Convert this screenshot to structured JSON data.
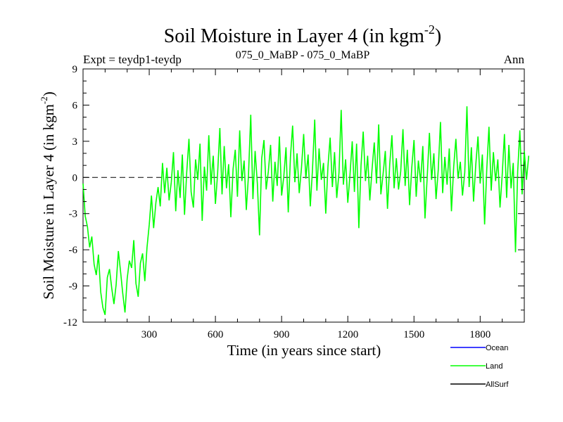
{
  "chart_data": {
    "type": "line",
    "title": "Soil Moisture in Layer 4 (in kgm",
    "title_sup": "-2",
    "title_close": ")",
    "subtitle_left": "Expt = teydp1-teydp",
    "subtitle_center": "075_0_MaBP - 075_0_MaBP",
    "subtitle_right": "Ann",
    "xlabel": "Time (in years since start)",
    "ylabel": "Soil Moisture in Layer 4 (in kgm",
    "ylabel_sup": "-2",
    "ylabel_close": ")",
    "xlim": [
      0,
      2000
    ],
    "ylim": [
      -12,
      9
    ],
    "xticks": [
      300,
      600,
      900,
      1200,
      1500,
      1800
    ],
    "xtick_labels": [
      "300",
      "600",
      "900",
      "1200",
      "1500",
      "1800"
    ],
    "yticks": [
      -12,
      -9,
      -6,
      -3,
      0,
      3,
      6,
      9
    ],
    "ytick_labels": [
      "-12",
      "-9",
      "-6",
      "-3",
      "0",
      "3",
      "6",
      "9"
    ],
    "zero_line": true,
    "series": [
      {
        "name": "Land",
        "color": "#00ff00",
        "x_start": 0,
        "x_step": 10,
        "values": [
          -0.5,
          -3.2,
          -4.1,
          -5.8,
          -4.9,
          -7.2,
          -8.1,
          -6.4,
          -9.5,
          -10.8,
          -11.4,
          -8.3,
          -7.6,
          -9.2,
          -10.5,
          -8.9,
          -6.1,
          -7.8,
          -9.6,
          -11.2,
          -8.4,
          -6.9,
          -7.5,
          -5.2,
          -8.8,
          -9.9,
          -7.1,
          -6.3,
          -8.6,
          -5.8,
          -3.9,
          -1.5,
          -4.2,
          -2.1,
          -0.8,
          -2.4,
          1.2,
          -1.3,
          0.8,
          -1.9,
          -0.4,
          2.1,
          -2.8,
          0.6,
          -1.7,
          1.9,
          -3.1,
          0.4,
          3.2,
          -1.2,
          -2.5,
          1.5,
          -0.2,
          2.8,
          -3.6,
          0.9,
          -1.1,
          3.5,
          -0.6,
          1.8,
          -2.2,
          0.3,
          4.1,
          -1.4,
          2.6,
          -0.9,
          1.1,
          -3.3,
          0.7,
          2.3,
          -1.6,
          3.9,
          -0.3,
          1.4,
          -2.7,
          0.2,
          5.2,
          -1.8,
          2.2,
          -0.5,
          -4.8,
          1.6,
          3.1,
          -1.0,
          0.5,
          2.7,
          -2.0,
          1.3,
          -0.7,
          3.4,
          -1.5,
          0.1,
          2.5,
          -2.9,
          1.7,
          4.3,
          -0.4,
          2.0,
          -1.3,
          0.8,
          3.6,
          -0.1,
          1.9,
          -2.4,
          0.6,
          4.8,
          -1.1,
          2.4,
          -0.2,
          1.2,
          -3.0,
          0.9,
          3.3,
          -0.8,
          2.1,
          -1.7,
          0.4,
          5.6,
          -0.6,
          1.5,
          -2.1,
          0.2,
          3.0,
          -1.2,
          2.8,
          -4.2,
          1.0,
          3.8,
          -0.3,
          1.8,
          -1.9,
          0.7,
          2.9,
          -0.5,
          4.4,
          -1.4,
          0.3,
          2.2,
          -2.6,
          1.1,
          3.5,
          -0.9,
          1.6,
          -1.0,
          0.5,
          4.0,
          -0.7,
          2.3,
          -2.3,
          0.8,
          3.1,
          -1.6,
          1.4,
          -0.4,
          2.6,
          -3.4,
          0.1,
          3.7,
          -0.2,
          2.0,
          -1.8,
          0.6,
          4.6,
          -1.3,
          1.7,
          -0.6,
          2.4,
          -2.8,
          0.9,
          3.2,
          -0.1,
          1.3,
          -1.5,
          0.4,
          5.9,
          -0.8,
          2.5,
          -2.0,
          1.0,
          3.4,
          -0.5,
          1.9,
          -3.9,
          0.7,
          4.2,
          -1.1,
          2.1,
          -0.3,
          1.5,
          -2.5,
          0.2,
          3.6,
          -1.7,
          2.7,
          -0.9,
          1.2,
          -6.2,
          0.5,
          3.9,
          -1.4,
          2.2,
          -0.2,
          1.8
        ]
      },
      {
        "name": "Ocean",
        "color": "#0000ff",
        "values": []
      },
      {
        "name": "AllSurf",
        "color": "#000000",
        "values": []
      }
    ],
    "legend": {
      "placement": "bottom-right",
      "entries": [
        {
          "name": "Ocean",
          "color": "#0000ff"
        },
        {
          "name": "Land",
          "color": "#00ff00"
        },
        {
          "name": "AllSurf",
          "color": "#000000"
        }
      ]
    }
  }
}
